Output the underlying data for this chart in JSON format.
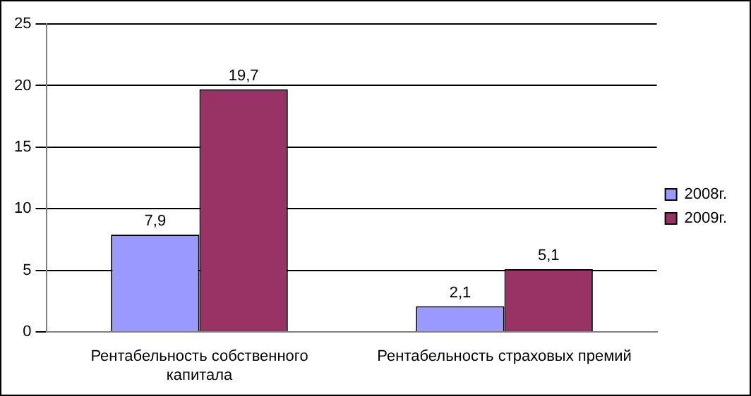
{
  "chart_data": {
    "type": "bar",
    "categories": [
      "Рентабельность собственного капитала",
      "Рентабельность страховых премий"
    ],
    "series": [
      {
        "name": "2008г.",
        "color": "#9999ff",
        "values": [
          7.9,
          2.1
        ],
        "value_labels": [
          "7,9",
          "2,1"
        ]
      },
      {
        "name": "2009г.",
        "color": "#993366",
        "values": [
          19.7,
          5.1
        ],
        "value_labels": [
          "19,7",
          "5,1"
        ]
      }
    ],
    "ylim": [
      0,
      25
    ],
    "yticks": [
      0,
      5,
      10,
      15,
      20,
      25
    ],
    "grid": "y",
    "legend": "right"
  }
}
